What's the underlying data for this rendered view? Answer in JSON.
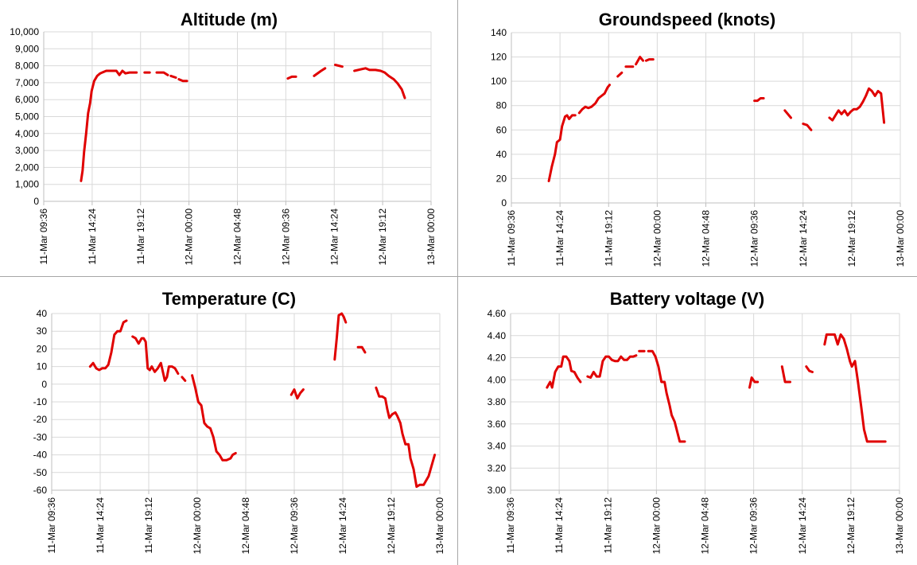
{
  "x_tick_labels": [
    "11-Mar 09:36",
    "11-Mar 14:24",
    "11-Mar 19:12",
    "12-Mar 00:00",
    "12-Mar 04:48",
    "12-Mar 09:36",
    "12-Mar 14:24",
    "12-Mar 19:12",
    "13-Mar 00:00"
  ],
  "colors": {
    "series": "#e00000",
    "grid": "#d9d9d9",
    "axis": "#bfbfbf",
    "text": "#000000",
    "divider": "#a6a6a6"
  },
  "chart_data": [
    {
      "type": "line",
      "title": "Altitude (m)",
      "x_unit": "hours since 11-Mar 09:36",
      "ylim": [
        0,
        10000
      ],
      "ytick_labels": [
        "0",
        "1,000",
        "2,000",
        "3,000",
        "4,000",
        "5,000",
        "6,000",
        "7,000",
        "8,000",
        "9,000",
        "10,000"
      ],
      "grid": true,
      "segments": [
        [
          [
            3.7,
            1200
          ],
          [
            3.85,
            1800
          ],
          [
            4.0,
            2900
          ],
          [
            4.2,
            4000
          ],
          [
            4.4,
            5200
          ],
          [
            4.6,
            5800
          ],
          [
            4.75,
            6500
          ],
          [
            5.0,
            7100
          ],
          [
            5.3,
            7400
          ],
          [
            5.6,
            7550
          ],
          [
            6.2,
            7700
          ],
          [
            7.2,
            7700
          ],
          [
            7.5,
            7450
          ],
          [
            7.8,
            7700
          ],
          [
            8.1,
            7550
          ],
          [
            8.5,
            7600
          ],
          [
            9.2,
            7600
          ]
        ],
        [
          [
            10.0,
            7600
          ],
          [
            10.5,
            7600
          ]
        ],
        [
          [
            11.2,
            7600
          ],
          [
            11.9,
            7600
          ],
          [
            12.3,
            7450
          ]
        ],
        [
          [
            12.6,
            7400
          ],
          [
            13.1,
            7300
          ]
        ],
        [
          [
            13.4,
            7200
          ],
          [
            13.8,
            7100
          ],
          [
            14.2,
            7100
          ]
        ],
        [
          [
            24.2,
            7250
          ],
          [
            24.6,
            7350
          ],
          [
            25.0,
            7350
          ]
        ],
        [
          [
            26.8,
            7400
          ],
          [
            27.5,
            7700
          ],
          [
            27.9,
            7850
          ]
        ],
        [
          [
            28.9,
            8050
          ],
          [
            29.6,
            7950
          ]
        ],
        [
          [
            30.8,
            7700
          ],
          [
            31.5,
            7800
          ],
          [
            31.9,
            7850
          ],
          [
            32.3,
            7750
          ],
          [
            32.9,
            7750
          ],
          [
            33.4,
            7700
          ],
          [
            33.8,
            7600
          ],
          [
            34.2,
            7400
          ],
          [
            34.7,
            7200
          ],
          [
            35.1,
            6950
          ],
          [
            35.5,
            6600
          ],
          [
            35.8,
            6100
          ]
        ]
      ]
    },
    {
      "type": "line",
      "title": "Groundspeed (knots)",
      "x_unit": "hours since 11-Mar 09:36",
      "ylim": [
        0,
        140
      ],
      "ytick_labels": [
        "0",
        "20",
        "40",
        "60",
        "80",
        "100",
        "120",
        "140"
      ],
      "grid": true,
      "segments": [
        [
          [
            3.7,
            18
          ],
          [
            4.0,
            30
          ],
          [
            4.3,
            40
          ],
          [
            4.5,
            50
          ],
          [
            4.8,
            52
          ],
          [
            5.0,
            63
          ],
          [
            5.3,
            71
          ],
          [
            5.5,
            72
          ],
          [
            5.7,
            69
          ],
          [
            6.0,
            72
          ],
          [
            6.3,
            72
          ]
        ],
        [
          [
            6.7,
            74
          ],
          [
            7.0,
            77
          ],
          [
            7.3,
            79
          ],
          [
            7.6,
            78
          ],
          [
            7.9,
            79
          ],
          [
            8.3,
            82
          ],
          [
            8.6,
            86
          ],
          [
            8.9,
            88
          ],
          [
            9.2,
            90
          ],
          [
            9.5,
            95
          ],
          [
            9.7,
            97
          ]
        ],
        [
          [
            10.5,
            104
          ],
          [
            10.9,
            107
          ]
        ],
        [
          [
            11.3,
            112
          ],
          [
            12.0,
            112
          ]
        ],
        [
          [
            12.3,
            114
          ],
          [
            12.7,
            120
          ],
          [
            13.0,
            117
          ]
        ],
        [
          [
            13.3,
            117
          ],
          [
            13.6,
            118
          ],
          [
            14.0,
            118
          ]
        ],
        [
          [
            24.0,
            84
          ],
          [
            24.3,
            84
          ],
          [
            24.6,
            86
          ],
          [
            24.9,
            86
          ]
        ],
        [
          [
            27.0,
            76
          ],
          [
            27.6,
            70
          ]
        ],
        [
          [
            28.8,
            65
          ],
          [
            29.2,
            64
          ],
          [
            29.6,
            60
          ]
        ],
        [
          [
            31.4,
            70
          ],
          [
            31.7,
            68
          ],
          [
            32.0,
            72
          ],
          [
            32.3,
            76
          ],
          [
            32.6,
            73
          ],
          [
            32.9,
            76
          ],
          [
            33.2,
            72
          ],
          [
            33.5,
            75
          ],
          [
            33.8,
            77
          ],
          [
            34.1,
            77
          ],
          [
            34.4,
            79
          ],
          [
            34.7,
            83
          ],
          [
            35.0,
            88
          ],
          [
            35.3,
            94
          ],
          [
            35.6,
            92
          ],
          [
            35.9,
            88
          ],
          [
            36.2,
            92
          ],
          [
            36.5,
            90
          ],
          [
            36.8,
            66
          ]
        ]
      ]
    },
    {
      "type": "line",
      "title": "Temperature (C)",
      "x_unit": "hours since 11-Mar 09:36",
      "ylim": [
        -60,
        40
      ],
      "ytick_labels": [
        "-60",
        "-50",
        "-40",
        "-30",
        "-20",
        "-10",
        "0",
        "10",
        "20",
        "30",
        "40"
      ],
      "grid": true,
      "segments": [
        [
          [
            3.8,
            10
          ],
          [
            4.1,
            12
          ],
          [
            4.4,
            9
          ],
          [
            4.7,
            8
          ],
          [
            5.0,
            9
          ],
          [
            5.3,
            9
          ],
          [
            5.6,
            11
          ],
          [
            5.9,
            18
          ],
          [
            6.2,
            28
          ],
          [
            6.5,
            30
          ],
          [
            6.8,
            30
          ],
          [
            7.1,
            35
          ],
          [
            7.4,
            36
          ]
        ],
        [
          [
            8.0,
            27
          ],
          [
            8.3,
            26
          ],
          [
            8.6,
            23
          ],
          [
            8.9,
            26
          ],
          [
            9.1,
            26
          ],
          [
            9.3,
            24
          ],
          [
            9.5,
            9
          ],
          [
            9.7,
            8
          ],
          [
            9.9,
            10
          ],
          [
            10.2,
            7
          ],
          [
            10.5,
            9
          ],
          [
            10.8,
            12
          ],
          [
            11.0,
            7
          ],
          [
            11.2,
            2
          ],
          [
            11.4,
            4
          ],
          [
            11.6,
            10
          ],
          [
            11.9,
            10
          ],
          [
            12.2,
            9
          ],
          [
            12.5,
            6
          ]
        ],
        [
          [
            12.9,
            4
          ],
          [
            13.2,
            2
          ]
        ],
        [
          [
            13.9,
            5
          ],
          [
            14.2,
            -2
          ],
          [
            14.5,
            -10
          ],
          [
            14.8,
            -12
          ],
          [
            15.1,
            -22
          ],
          [
            15.4,
            -24
          ],
          [
            15.7,
            -25
          ],
          [
            16.0,
            -30
          ],
          [
            16.3,
            -38
          ],
          [
            16.6,
            -40
          ],
          [
            16.9,
            -43
          ],
          [
            17.3,
            -43
          ],
          [
            17.7,
            -42
          ],
          [
            17.9,
            -40
          ],
          [
            18.2,
            -39
          ]
        ],
        [
          [
            23.7,
            -6
          ],
          [
            24.0,
            -3
          ],
          [
            24.3,
            -8
          ],
          [
            24.6,
            -5
          ],
          [
            24.9,
            -3
          ]
        ],
        [
          [
            28.0,
            14
          ],
          [
            28.2,
            26
          ],
          [
            28.4,
            39
          ],
          [
            28.7,
            40
          ],
          [
            28.9,
            38
          ],
          [
            29.1,
            35
          ]
        ],
        [
          [
            30.3,
            21
          ],
          [
            30.7,
            21
          ],
          [
            31.0,
            18
          ]
        ],
        [
          [
            32.1,
            -2
          ],
          [
            32.4,
            -7
          ],
          [
            32.7,
            -7
          ],
          [
            33.0,
            -8
          ],
          [
            33.2,
            -14
          ],
          [
            33.4,
            -19
          ],
          [
            33.7,
            -17
          ],
          [
            34.0,
            -16
          ],
          [
            34.2,
            -18
          ],
          [
            34.5,
            -22
          ],
          [
            34.7,
            -28
          ],
          [
            35.0,
            -34
          ],
          [
            35.3,
            -34
          ],
          [
            35.5,
            -42
          ],
          [
            35.8,
            -48
          ],
          [
            36.1,
            -58
          ],
          [
            36.4,
            -57
          ],
          [
            36.8,
            -57
          ],
          [
            37.0,
            -55
          ],
          [
            37.3,
            -52
          ],
          [
            37.6,
            -46
          ],
          [
            37.9,
            -40
          ]
        ]
      ]
    },
    {
      "type": "line",
      "title": "Battery voltage (V)",
      "x_unit": "hours since 11-Mar 09:36",
      "ylim": [
        3.0,
        4.6
      ],
      "ytick_labels": [
        "3.00",
        "3.20",
        "3.40",
        "3.60",
        "3.80",
        "4.00",
        "4.20",
        "4.40",
        "4.60"
      ],
      "grid": true,
      "segments": [
        [
          [
            3.6,
            3.93
          ],
          [
            3.9,
            3.98
          ],
          [
            4.1,
            3.93
          ],
          [
            4.4,
            4.07
          ],
          [
            4.7,
            4.12
          ],
          [
            5.0,
            4.12
          ],
          [
            5.2,
            4.21
          ],
          [
            5.5,
            4.21
          ],
          [
            5.8,
            4.17
          ],
          [
            6.0,
            4.08
          ],
          [
            6.3,
            4.07
          ],
          [
            6.6,
            4.02
          ],
          [
            6.9,
            3.98
          ]
        ],
        [
          [
            7.6,
            4.03
          ],
          [
            7.9,
            4.02
          ],
          [
            8.2,
            4.07
          ],
          [
            8.5,
            4.03
          ],
          [
            8.8,
            4.03
          ],
          [
            9.1,
            4.17
          ],
          [
            9.4,
            4.21
          ],
          [
            9.7,
            4.21
          ],
          [
            10.0,
            4.18
          ],
          [
            10.3,
            4.17
          ],
          [
            10.6,
            4.17
          ],
          [
            10.9,
            4.21
          ],
          [
            11.2,
            4.18
          ],
          [
            11.5,
            4.18
          ],
          [
            11.8,
            4.21
          ],
          [
            12.1,
            4.21
          ],
          [
            12.4,
            4.22
          ]
        ],
        [
          [
            12.7,
            4.26
          ],
          [
            13.2,
            4.26
          ]
        ],
        [
          [
            13.6,
            4.26
          ],
          [
            14.0,
            4.26
          ],
          [
            14.3,
            4.21
          ],
          [
            14.6,
            4.12
          ],
          [
            14.9,
            3.98
          ],
          [
            15.2,
            3.98
          ],
          [
            15.4,
            3.88
          ],
          [
            15.7,
            3.77
          ],
          [
            15.9,
            3.68
          ],
          [
            16.2,
            3.62
          ],
          [
            16.4,
            3.55
          ],
          [
            16.7,
            3.44
          ],
          [
            17.2,
            3.44
          ]
        ],
        [
          [
            23.6,
            3.93
          ],
          [
            23.8,
            4.02
          ],
          [
            24.1,
            3.98
          ],
          [
            24.4,
            3.98
          ]
        ],
        [
          [
            26.8,
            4.12
          ],
          [
            27.1,
            3.98
          ],
          [
            27.6,
            3.98
          ]
        ],
        [
          [
            29.2,
            4.12
          ],
          [
            29.5,
            4.08
          ],
          [
            29.8,
            4.07
          ]
        ],
        [
          [
            31.0,
            4.32
          ],
          [
            31.2,
            4.41
          ],
          [
            31.6,
            4.41
          ],
          [
            32.0,
            4.41
          ],
          [
            32.3,
            4.32
          ],
          [
            32.6,
            4.41
          ],
          [
            32.9,
            4.37
          ],
          [
            33.2,
            4.28
          ],
          [
            33.5,
            4.17
          ],
          [
            33.7,
            4.12
          ],
          [
            34.0,
            4.17
          ],
          [
            34.3,
            3.98
          ],
          [
            34.6,
            3.77
          ],
          [
            34.9,
            3.55
          ],
          [
            35.2,
            3.44
          ],
          [
            35.8,
            3.44
          ],
          [
            36.5,
            3.44
          ],
          [
            37.0,
            3.44
          ]
        ]
      ]
    }
  ]
}
